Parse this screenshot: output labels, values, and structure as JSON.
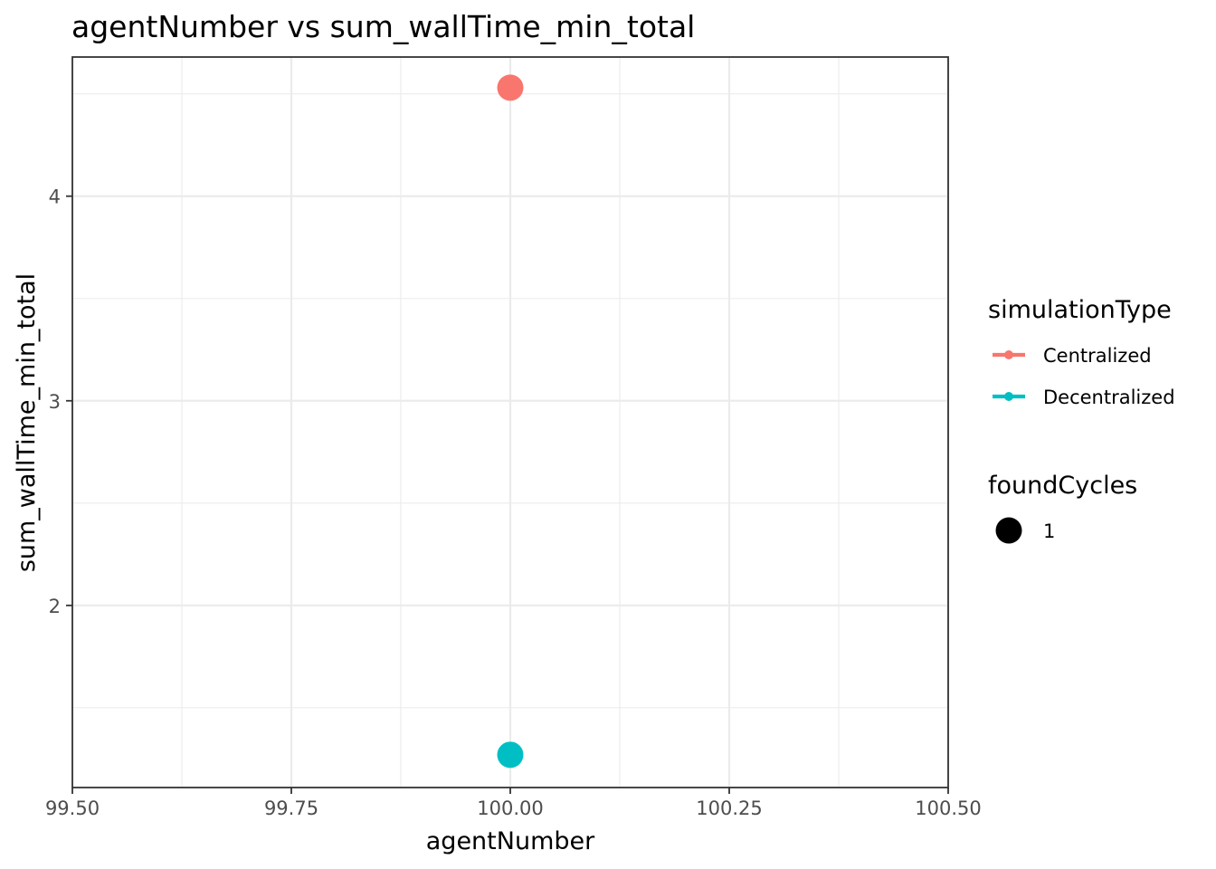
{
  "chart_data": {
    "type": "scatter",
    "title": "agentNumber  vs  sum_wallTime_min_total",
    "xlabel": "agentNumber",
    "ylabel": "sum_wallTime_min_total",
    "xlim": [
      99.5,
      100.5
    ],
    "ylim": [
      1.11,
      4.68
    ],
    "x_ticks": [
      99.5,
      99.75,
      100.0,
      100.25,
      100.5
    ],
    "x_tick_labels": [
      "99.50",
      "99.75",
      "100.00",
      "100.25",
      "100.50"
    ],
    "x_minor_ticks": [
      99.625,
      99.875,
      100.125,
      100.375
    ],
    "y_ticks": [
      2,
      3,
      4
    ],
    "y_tick_labels": [
      "2",
      "3",
      "4"
    ],
    "y_minor_ticks": [
      1.5,
      2.5,
      3.5,
      4.5
    ],
    "grid": true,
    "legend_placement": "right",
    "series": [
      {
        "name": "Centralized",
        "color": "#F8766D",
        "points": [
          {
            "x": 100.0,
            "y": 4.53,
            "foundCycles": 1
          }
        ]
      },
      {
        "name": "Decentralized",
        "color": "#00BFC4",
        "points": [
          {
            "x": 100.0,
            "y": 1.27,
            "foundCycles": 1
          }
        ]
      }
    ],
    "legends": [
      {
        "title": "simulationType",
        "kind": "color",
        "entries": [
          {
            "label": "Centralized",
            "color": "#F8766D"
          },
          {
            "label": "Decentralized",
            "color": "#00BFC4"
          }
        ]
      },
      {
        "title": "foundCycles",
        "kind": "size",
        "entries": [
          {
            "label": "1",
            "color": "#000000"
          }
        ]
      }
    ]
  }
}
